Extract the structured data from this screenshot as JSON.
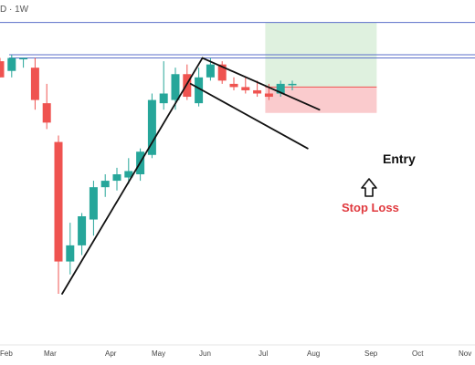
{
  "header": {
    "symbol_interval": "D · 1W"
  },
  "colors": {
    "bull": "#26a69a",
    "bear": "#ef5350",
    "hline": "#5b6fc9",
    "trendline": "#111111",
    "target_zone": "#d9efd9",
    "stop_zone": "#f9c5c8",
    "stop_text": "#e0393e"
  },
  "annotations": {
    "entry": "Entry",
    "stop_loss": "Stop Loss"
  },
  "chart_data": {
    "type": "candlestick",
    "title": "",
    "xlabel": "",
    "ylabel": "",
    "ylim": [
      0,
      100
    ],
    "grid": false,
    "x_ticks": [
      "Feb",
      "Mar",
      "Apr",
      "May",
      "Jun",
      "Jul",
      "Aug",
      "Sep",
      "Oct",
      "Nov"
    ],
    "candles": [
      {
        "o": 85,
        "h": 86,
        "l": 80,
        "c": 80
      },
      {
        "o": 82,
        "h": 87,
        "l": 80,
        "c": 86
      },
      {
        "o": 86,
        "h": 86,
        "l": 83,
        "c": 86
      },
      {
        "o": 83,
        "h": 86,
        "l": 70,
        "c": 73
      },
      {
        "o": 72,
        "h": 78,
        "l": 64,
        "c": 66
      },
      {
        "o": 60,
        "h": 62,
        "l": 13,
        "c": 23
      },
      {
        "o": 23,
        "h": 35,
        "l": 19,
        "c": 28
      },
      {
        "o": 28,
        "h": 38,
        "l": 25,
        "c": 37
      },
      {
        "o": 36,
        "h": 48,
        "l": 31,
        "c": 46
      },
      {
        "o": 46,
        "h": 50,
        "l": 43,
        "c": 48
      },
      {
        "o": 48,
        "h": 52,
        "l": 45,
        "c": 50
      },
      {
        "o": 49,
        "h": 55,
        "l": 47,
        "c": 51
      },
      {
        "o": 50,
        "h": 58,
        "l": 48,
        "c": 57
      },
      {
        "o": 56,
        "h": 75,
        "l": 55,
        "c": 73
      },
      {
        "o": 72,
        "h": 85,
        "l": 70,
        "c": 75
      },
      {
        "o": 73,
        "h": 83,
        "l": 70,
        "c": 81
      },
      {
        "o": 81,
        "h": 84,
        "l": 73,
        "c": 74
      },
      {
        "o": 72,
        "h": 83,
        "l": 71,
        "c": 80
      },
      {
        "o": 80,
        "h": 86,
        "l": 79,
        "c": 84
      },
      {
        "o": 84,
        "h": 85,
        "l": 78,
        "c": 79
      },
      {
        "o": 78,
        "h": 80,
        "l": 76,
        "c": 77
      },
      {
        "o": 77,
        "h": 80,
        "l": 75,
        "c": 76
      },
      {
        "o": 76,
        "h": 79,
        "l": 74,
        "c": 75
      },
      {
        "o": 75,
        "h": 78,
        "l": 73,
        "c": 74
      },
      {
        "o": 75,
        "h": 79,
        "l": 74,
        "c": 78
      },
      {
        "o": 78,
        "h": 79,
        "l": 76,
        "c": 78
      }
    ],
    "horizontal_lines": [
      97,
      87,
      86
    ],
    "trendlines": [
      {
        "from": [
          5,
          13
        ],
        "to": [
          17,
          86
        ]
      },
      {
        "from": [
          17,
          86
        ],
        "to": [
          27,
          70
        ]
      },
      {
        "from": [
          16,
          78
        ],
        "to": [
          26,
          58
        ]
      }
    ],
    "zones": {
      "target": {
        "from_index": 23,
        "to_index": 28,
        "low": 77,
        "high": 97
      },
      "stop": {
        "from_index": 23,
        "to_index": 28,
        "low": 69,
        "high": 77
      }
    }
  }
}
